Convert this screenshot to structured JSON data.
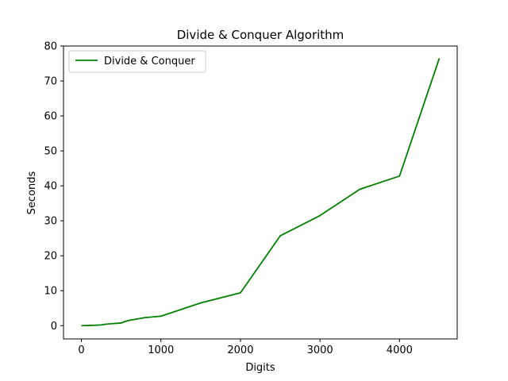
{
  "chart_data": {
    "type": "line",
    "title": "Divide & Conquer Algorithm",
    "xlabel": "Digits",
    "ylabel": "Seconds",
    "xlim": [
      -225,
      4725
    ],
    "ylim": [
      -3.8,
      80
    ],
    "xticks": [
      0,
      1000,
      2000,
      3000,
      4000
    ],
    "yticks": [
      0,
      10,
      20,
      30,
      40,
      50,
      60,
      70,
      80
    ],
    "grid": false,
    "legend_position": "top-left",
    "series": [
      {
        "name": "Divide & Conquer",
        "color": "#008000",
        "x": [
          0,
          100,
          200,
          250,
          300,
          400,
          500,
          550,
          600,
          700,
          800,
          900,
          1000,
          1500,
          2000,
          2500,
          3000,
          3500,
          4000,
          4500
        ],
        "y": [
          0.0,
          0.05,
          0.15,
          0.2,
          0.4,
          0.6,
          0.75,
          1.2,
          1.5,
          1.9,
          2.3,
          2.5,
          2.7,
          6.5,
          9.4,
          25.7,
          31.5,
          39.0,
          42.8,
          76.5
        ]
      }
    ]
  }
}
